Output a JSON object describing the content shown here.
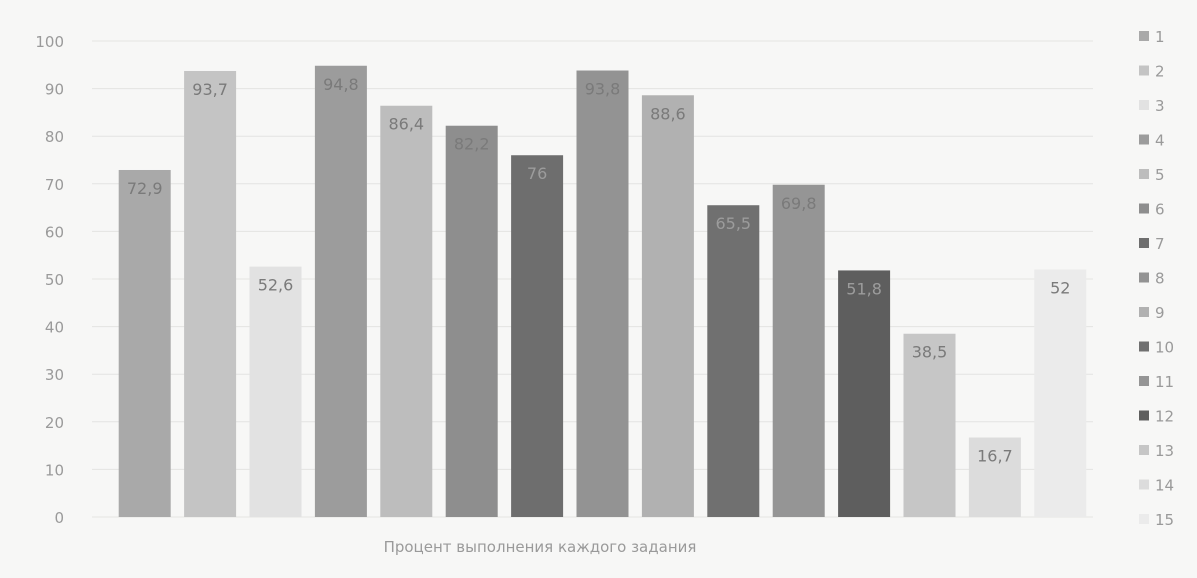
{
  "chart_data": {
    "type": "bar",
    "title": "",
    "xlabel": "Процент выполнения каждого задания",
    "ylabel": "",
    "ylim": [
      0,
      100
    ],
    "yticks": [
      0,
      10,
      20,
      30,
      40,
      50,
      60,
      70,
      80,
      90,
      100
    ],
    "grid": true,
    "legend_position": "right",
    "series": [
      {
        "name": "1",
        "value": 72.9,
        "label": "72,9",
        "color": "#a9a9a9"
      },
      {
        "name": "2",
        "value": 93.7,
        "label": "93,7",
        "color": "#c4c4c4"
      },
      {
        "name": "3",
        "value": 52.6,
        "label": "52,6",
        "color": "#e2e2e2"
      },
      {
        "name": "4",
        "value": 94.8,
        "label": "94,8",
        "color": "#9c9c9c"
      },
      {
        "name": "5",
        "value": 86.4,
        "label": "86,4",
        "color": "#bdbdbd"
      },
      {
        "name": "6",
        "value": 82.2,
        "label": "82,2",
        "color": "#8e8e8e"
      },
      {
        "name": "7",
        "value": 76,
        "label": "76",
        "color": "#6e6e6e"
      },
      {
        "name": "8",
        "value": 93.8,
        "label": "93,8",
        "color": "#939393"
      },
      {
        "name": "9",
        "value": 88.6,
        "label": "88,6",
        "color": "#b1b1b1"
      },
      {
        "name": "10",
        "value": 65.5,
        "label": "65,5",
        "color": "#707070"
      },
      {
        "name": "11",
        "value": 69.8,
        "label": "69,8",
        "color": "#959595"
      },
      {
        "name": "12",
        "value": 51.8,
        "label": "51,8",
        "color": "#5e5e5e"
      },
      {
        "name": "13",
        "value": 38.5,
        "label": "38,5",
        "color": "#c6c6c6"
      },
      {
        "name": "14",
        "value": 16.7,
        "label": "16,7",
        "color": "#dcdcdc"
      },
      {
        "name": "15",
        "value": 52,
        "label": "52",
        "color": "#ebebeb"
      }
    ]
  }
}
